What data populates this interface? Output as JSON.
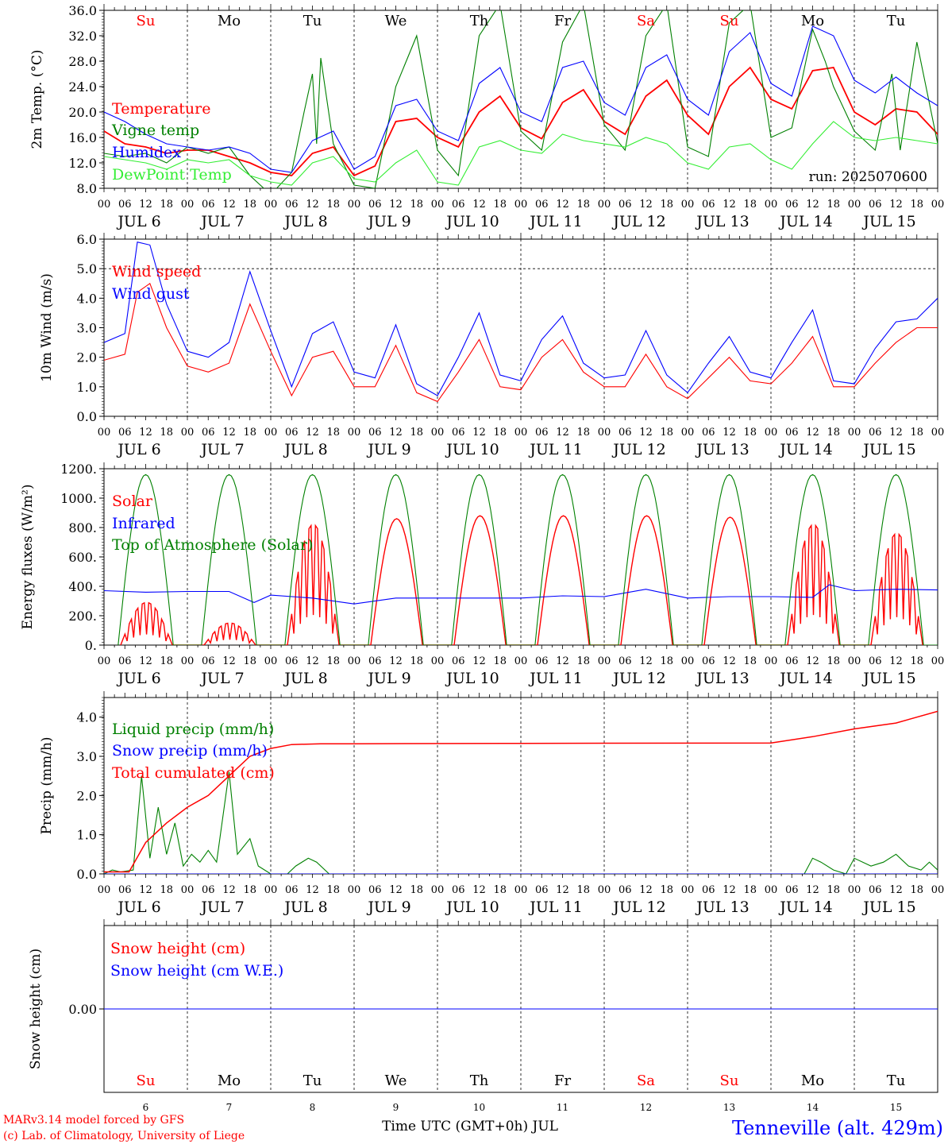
{
  "days": [
    "Su",
    "Mo",
    "Tu",
    "We",
    "Th",
    "Fr",
    "Sa",
    "Su",
    "Mo",
    "Tu"
  ],
  "weekend_days": [
    0,
    6,
    7
  ],
  "dates": [
    "JUL  6",
    "JUL  7",
    "JUL  8",
    "JUL  9",
    "JUL 10",
    "JUL 11",
    "JUL 12",
    "JUL 13",
    "JUL 14",
    "JUL 15"
  ],
  "hour_labels": [
    "00",
    "06",
    "12",
    "18"
  ],
  "end_hour_label": "00",
  "day_numbers": [
    "6",
    "7",
    "8",
    "9",
    "10",
    "11",
    "12",
    "13",
    "14",
    "15"
  ],
  "footer": {
    "model": "MARv3.14 model forced by GFS",
    "lab": "(c) Lab. of Climatology, University of Liege",
    "axis_title": "Time UTC (GMT+0h) JUL",
    "location": "Tenneville (alt. 429m)"
  },
  "colors": {
    "red": "#ff0000",
    "green": "#008000",
    "blue": "#0000ff",
    "lightgreen": "#33ee33",
    "black": "#000000"
  },
  "chart_data": [
    {
      "type": "line",
      "ylabel": "2m Temp. (°C)",
      "ylim": [
        8,
        36
      ],
      "yticks": [
        "8.0",
        "12.0",
        "16.0",
        "20.0",
        "24.0",
        "28.0",
        "32.0",
        "36.0"
      ],
      "run_label": "run: 2025070600",
      "x_days": [
        0,
        10
      ],
      "series": [
        {
          "name": "Temperature",
          "color": "#ff0000",
          "x": [
            0,
            0.25,
            0.5,
            0.75,
            1,
            1.25,
            1.5,
            1.75,
            2,
            2.25,
            2.5,
            2.75,
            3,
            3.25,
            3.5,
            3.75,
            4,
            4.25,
            4.5,
            4.75,
            5,
            5.25,
            5.5,
            5.75,
            6,
            6.25,
            6.5,
            6.75,
            7,
            7.25,
            7.5,
            7.75,
            8,
            8.25,
            8.5,
            8.75,
            9,
            9.25,
            9.5,
            9.75,
            10
          ],
          "y": [
            17.0,
            15.0,
            14.5,
            13.5,
            14.0,
            14.0,
            13.0,
            12.0,
            10.5,
            10.0,
            13.5,
            14.5,
            10.0,
            11.5,
            18.5,
            19.0,
            16.0,
            14.5,
            20.0,
            22.5,
            17.5,
            15.8,
            21.5,
            23.5,
            18.5,
            16.5,
            22.5,
            25.0,
            19.5,
            16.5,
            24.0,
            27.0,
            22.0,
            20.5,
            26.5,
            27.0,
            20.0,
            18.0,
            20.5,
            20.0,
            16.5
          ]
        },
        {
          "name": "Vigne temp",
          "color": "#008000",
          "x": [
            0,
            0.25,
            0.5,
            0.75,
            1,
            1.25,
            1.5,
            1.75,
            2,
            2.25,
            2.4,
            2.5,
            2.55,
            2.6,
            2.75,
            3,
            3.25,
            3.5,
            3.75,
            4,
            4.25,
            4.5,
            4.75,
            5,
            5.25,
            5.5,
            5.75,
            6,
            6.25,
            6.5,
            6.75,
            7,
            7.25,
            7.5,
            7.75,
            8,
            8.25,
            8.5,
            8.65,
            8.75,
            9,
            9.25,
            9.45,
            9.55,
            9.75,
            10
          ],
          "y": [
            13.5,
            13.0,
            13.5,
            12.0,
            14.5,
            13.5,
            14.5,
            10.0,
            7.0,
            10.5,
            20.0,
            26.0,
            15.0,
            28.5,
            15.0,
            8.5,
            8.0,
            24.0,
            32.0,
            14.0,
            10.0,
            32.0,
            37.0,
            17.0,
            14.0,
            31.0,
            37.0,
            18.0,
            14.0,
            32.0,
            37.0,
            14.5,
            13.0,
            34.0,
            37.0,
            16.0,
            17.5,
            33.0,
            28.0,
            24.0,
            17.0,
            14.0,
            26.0,
            14.0,
            31.0,
            15.0
          ]
        },
        {
          "name": "Humidex",
          "color": "#0000ff",
          "x": [
            0,
            0.25,
            0.5,
            0.75,
            1,
            1.25,
            1.5,
            1.75,
            2,
            2.25,
            2.5,
            2.75,
            3,
            3.25,
            3.5,
            3.75,
            4,
            4.25,
            4.5,
            4.75,
            5,
            5.25,
            5.5,
            5.75,
            6,
            6.25,
            6.5,
            6.75,
            7,
            7.25,
            7.5,
            7.75,
            8,
            8.25,
            8.5,
            8.75,
            9,
            9.25,
            9.5,
            9.75,
            10
          ],
          "y": [
            20.0,
            18.5,
            16.5,
            15.0,
            14.5,
            14.0,
            14.5,
            13.5,
            11.0,
            10.5,
            15.5,
            17.0,
            11.0,
            13.0,
            21.0,
            22.0,
            17.0,
            15.5,
            24.5,
            27.0,
            20.0,
            18.5,
            27.0,
            28.0,
            21.5,
            19.5,
            27.0,
            29.0,
            22.0,
            19.5,
            29.5,
            32.5,
            24.5,
            22.5,
            33.5,
            32.0,
            25.0,
            23.0,
            25.5,
            23.0,
            21.0
          ]
        },
        {
          "name": "DewPoint Temp",
          "color": "#33ee33",
          "x": [
            0,
            0.25,
            0.5,
            0.75,
            1,
            1.25,
            1.5,
            1.75,
            2,
            2.25,
            2.5,
            2.75,
            3,
            3.25,
            3.5,
            3.75,
            4,
            4.25,
            4.5,
            4.75,
            5,
            5.25,
            5.5,
            5.75,
            6,
            6.25,
            6.5,
            6.75,
            7,
            7.25,
            7.5,
            7.75,
            8,
            8.25,
            8.5,
            8.75,
            9,
            9.25,
            9.5,
            9.75,
            10
          ],
          "y": [
            13.0,
            12.5,
            12.0,
            11.0,
            12.5,
            12.0,
            12.5,
            10.0,
            9.0,
            8.5,
            12.0,
            13.0,
            9.5,
            9.0,
            12.0,
            14.0,
            9.0,
            8.5,
            14.5,
            15.5,
            14.0,
            13.5,
            16.5,
            15.5,
            15.0,
            14.5,
            16.0,
            15.0,
            12.0,
            11.0,
            14.5,
            15.0,
            12.5,
            11.0,
            15.0,
            18.5,
            16.0,
            15.5,
            16.0,
            15.5,
            15.0
          ]
        }
      ]
    },
    {
      "type": "line",
      "ylabel": "10m Wind (m/s)",
      "ylim": [
        0,
        6
      ],
      "yticks": [
        "0.0",
        "1.0",
        "2.0",
        "3.0",
        "4.0",
        "5.0",
        "6.0"
      ],
      "x_days": [
        0,
        10
      ],
      "series": [
        {
          "name": "Wind speed",
          "color": "#ff0000",
          "x": [
            0,
            0.25,
            0.4,
            0.55,
            0.75,
            1,
            1.25,
            1.5,
            1.75,
            2,
            2.25,
            2.5,
            2.75,
            3,
            3.25,
            3.5,
            3.75,
            4,
            4.25,
            4.5,
            4.75,
            5,
            5.25,
            5.5,
            5.75,
            6,
            6.25,
            6.5,
            6.75,
            7,
            7.25,
            7.5,
            7.75,
            8,
            8.25,
            8.5,
            8.75,
            9,
            9.25,
            9.5,
            9.75,
            10
          ],
          "y": [
            1.9,
            2.1,
            4.2,
            4.5,
            3.0,
            1.7,
            1.5,
            1.8,
            3.8,
            2.2,
            0.7,
            2.0,
            2.2,
            1.0,
            1.0,
            2.4,
            0.8,
            0.5,
            1.5,
            2.6,
            1.0,
            0.9,
            2.0,
            2.6,
            1.5,
            1.0,
            1.0,
            2.1,
            1.0,
            0.6,
            1.3,
            2.0,
            1.2,
            1.1,
            1.8,
            2.7,
            1.0,
            1.0,
            1.8,
            2.5,
            3.0,
            3.0
          ]
        },
        {
          "name": "Wind gust",
          "color": "#0000ff",
          "x": [
            0,
            0.25,
            0.4,
            0.55,
            0.75,
            1,
            1.25,
            1.5,
            1.75,
            2,
            2.25,
            2.5,
            2.75,
            3,
            3.25,
            3.5,
            3.75,
            4,
            4.25,
            4.5,
            4.75,
            5,
            5.25,
            5.5,
            5.75,
            6,
            6.25,
            6.5,
            6.75,
            7,
            7.25,
            7.5,
            7.75,
            8,
            8.25,
            8.5,
            8.75,
            9,
            9.25,
            9.5,
            9.75,
            10
          ],
          "y": [
            2.5,
            2.8,
            5.9,
            5.8,
            3.8,
            2.2,
            2.0,
            2.5,
            4.9,
            2.9,
            1.0,
            2.8,
            3.2,
            1.5,
            1.3,
            3.1,
            1.1,
            0.7,
            2.0,
            3.5,
            1.4,
            1.2,
            2.6,
            3.4,
            1.8,
            1.3,
            1.4,
            2.9,
            1.4,
            0.8,
            1.8,
            2.7,
            1.5,
            1.3,
            2.5,
            3.6,
            1.2,
            1.1,
            2.3,
            3.2,
            3.3,
            4.0
          ]
        }
      ]
    },
    {
      "type": "line",
      "ylabel": "Energy fluxes (W/m²)",
      "ylim": [
        0,
        1200
      ],
      "yticks": [
        "0.",
        "200.",
        "400.",
        "600.",
        "800.",
        "1000.",
        "1200."
      ],
      "x_days": [
        0,
        10
      ],
      "series": [
        {
          "name": "Solar",
          "color": "#ff0000",
          "day_peaks": [
            290,
            150,
            820,
            860,
            880,
            880,
            880,
            870,
            820,
            760
          ]
        },
        {
          "name": "Infrared",
          "color": "#0000ff",
          "x": [
            0,
            0.5,
            1,
            1.5,
            1.8,
            2,
            2.5,
            3,
            3.5,
            4,
            4.5,
            5,
            5.5,
            6,
            6.5,
            7,
            7.5,
            8,
            8.5,
            8.7,
            9,
            9.5,
            10
          ],
          "y": [
            370,
            360,
            365,
            365,
            290,
            340,
            320,
            280,
            320,
            320,
            320,
            320,
            335,
            330,
            380,
            320,
            330,
            330,
            325,
            410,
            370,
            380,
            375
          ]
        },
        {
          "name": "Top of Atmosphere (Solar)",
          "color": "#008000",
          "peak": 1160
        }
      ]
    },
    {
      "type": "line",
      "ylabel": "Precip (mm/h)",
      "ylim": [
        0,
        4.5
      ],
      "yticks": [
        "0.0",
        "1.0",
        "2.0",
        "3.0",
        "4.0"
      ],
      "x_days": [
        0,
        10
      ],
      "series": [
        {
          "name": "Liquid precip (mm/h)",
          "color": "#008000",
          "x": [
            0,
            0.1,
            0.2,
            0.35,
            0.45,
            0.55,
            0.65,
            0.75,
            0.85,
            0.95,
            1.05,
            1.15,
            1.25,
            1.35,
            1.5,
            1.6,
            1.75,
            1.85,
            2,
            2.2,
            2.3,
            2.45,
            2.55,
            2.7,
            3,
            8.4,
            8.5,
            8.6,
            8.75,
            8.9,
            9.0,
            9.2,
            9.35,
            9.5,
            9.65,
            9.8,
            9.9,
            10
          ],
          "y": [
            0,
            0.1,
            0.05,
            0.1,
            2.5,
            0.4,
            1.7,
            0.5,
            1.3,
            0.2,
            0.5,
            0.3,
            0.6,
            0.3,
            2.6,
            0.5,
            0.9,
            0.2,
            0,
            0,
            0.2,
            0.4,
            0.3,
            0,
            0,
            0,
            0.4,
            0.3,
            0.1,
            0,
            0.4,
            0.2,
            0.3,
            0.5,
            0.2,
            0.1,
            0.3,
            0.1
          ]
        },
        {
          "name": "Snow precip (mm/h)",
          "color": "#0000ff",
          "x": [
            0,
            10
          ],
          "y": [
            0,
            0
          ]
        },
        {
          "name": "Total cumulated (cm)",
          "color": "#ff0000",
          "x": [
            0,
            0.3,
            0.5,
            0.75,
            1,
            1.25,
            1.5,
            1.75,
            2,
            2.25,
            2.6,
            3,
            5,
            8,
            8.5,
            9,
            9.5,
            10
          ],
          "y": [
            0.05,
            0.05,
            0.8,
            1.3,
            1.7,
            2.0,
            2.5,
            3.0,
            3.2,
            3.3,
            3.32,
            3.32,
            3.33,
            3.34,
            3.5,
            3.7,
            3.85,
            4.15
          ]
        }
      ]
    },
    {
      "type": "line",
      "ylabel": "Snow height (cm)",
      "ytick": "0.00",
      "x_days": [
        0,
        10
      ],
      "series": [
        {
          "name": "Snow height (cm)",
          "color": "#ff0000",
          "x": [
            0,
            10
          ],
          "y": [
            0,
            0
          ]
        },
        {
          "name": "Snow height (cm W.E.)",
          "color": "#0000ff",
          "x": [
            0,
            10
          ],
          "y": [
            0,
            0
          ]
        }
      ]
    }
  ]
}
